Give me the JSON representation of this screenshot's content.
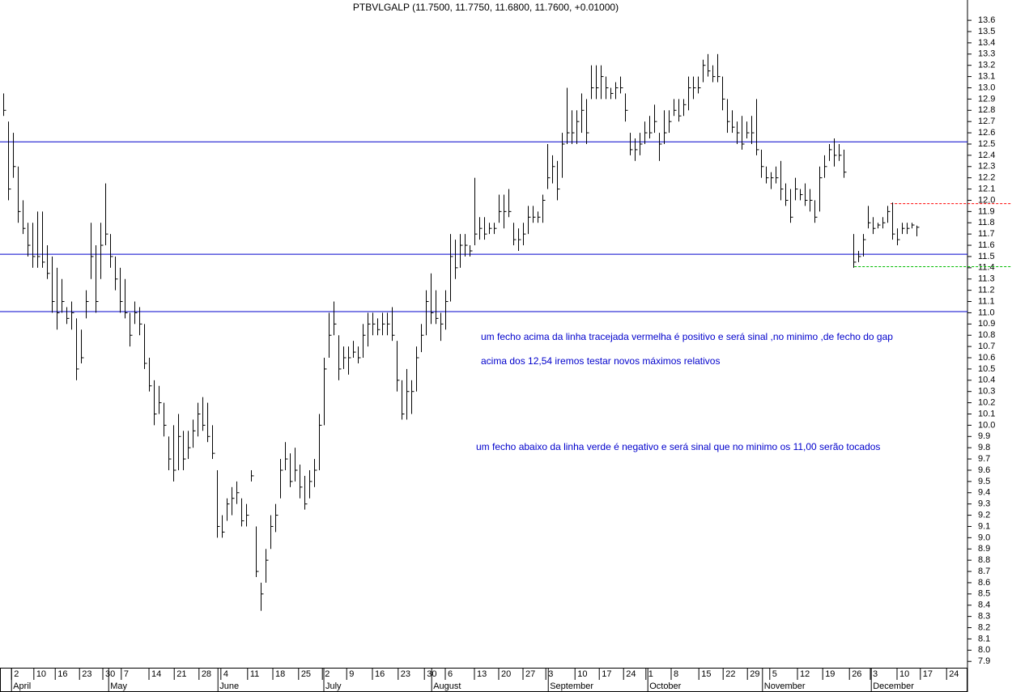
{
  "chart_data": {
    "type": "hlc",
    "title": "PTBVLGALP (11.7500, 11.7750, 11.6800, 11.7600, +0.01000)",
    "high": [
      12.95,
      12.7,
      12.6,
      12.3,
      12.0,
      11.8,
      11.8,
      11.9,
      11.9,
      11.6,
      11.5,
      11.4,
      11.3,
      11.05,
      11.1,
      10.95,
      10.85,
      11.2,
      11.8,
      11.6,
      11.8,
      12.15,
      11.7,
      11.5,
      11.4,
      11.3,
      11.0,
      11.1,
      11.05,
      10.9,
      10.6,
      10.4,
      10.35,
      10.2,
      9.9,
      10.0,
      10.1,
      9.95,
      9.95,
      10.05,
      10.2,
      10.25,
      10.2,
      10.0,
      9.6,
      9.2,
      9.35,
      9.45,
      9.5,
      9.35,
      9.3,
      9.6,
      9.1,
      8.6,
      8.9,
      9.2,
      9.3,
      9.7,
      9.85,
      9.75,
      9.8,
      9.65,
      9.55,
      9.6,
      9.7,
      10.1,
      10.6,
      11.0,
      11.1,
      10.8,
      10.7,
      10.7,
      10.75,
      10.7,
      10.9,
      11.0,
      11.0,
      10.95,
      11.0,
      11.0,
      11.05,
      10.75,
      10.4,
      10.5,
      10.4,
      10.7,
      10.9,
      11.2,
      11.35,
      11.2,
      11.0,
      11.2,
      11.7,
      11.65,
      11.7,
      11.7,
      11.6,
      12.2,
      11.85,
      11.85,
      11.8,
      11.8,
      12.05,
      12.05,
      12.1,
      11.8,
      11.75,
      11.8,
      11.95,
      11.95,
      11.9,
      12.05,
      12.5,
      12.4,
      12.35,
      12.6,
      13.0,
      12.8,
      12.8,
      12.95,
      12.9,
      13.2,
      13.2,
      13.2,
      13.1,
      13.0,
      13.05,
      13.1,
      12.95,
      12.6,
      12.55,
      12.6,
      12.7,
      12.75,
      12.85,
      12.6,
      12.8,
      12.8,
      12.9,
      12.9,
      12.9,
      13.1,
      13.1,
      13.1,
      13.25,
      13.3,
      13.2,
      13.3,
      13.1,
      12.9,
      12.8,
      12.7,
      12.75,
      12.7,
      12.75,
      12.9,
      12.45,
      12.3,
      12.25,
      12.3,
      12.35,
      12.15,
      12.1,
      12.2,
      12.1,
      12.15,
      12.1,
      12.0,
      12.3,
      12.4,
      12.5,
      12.55,
      12.5,
      12.45,
      null,
      11.7,
      11.55,
      11.7,
      11.95,
      11.85,
      11.8,
      11.85,
      11.95,
      11.98,
      11.75,
      11.8,
      11.8,
      11.8,
      11.775
    ],
    "low": [
      12.75,
      12.0,
      12.2,
      11.8,
      11.7,
      11.5,
      11.4,
      11.4,
      11.4,
      11.3,
      11.0,
      10.85,
      11.0,
      10.9,
      10.85,
      10.4,
      10.55,
      10.95,
      11.3,
      11.0,
      11.3,
      11.6,
      11.4,
      11.2,
      11.0,
      10.95,
      10.7,
      10.9,
      10.8,
      10.5,
      10.3,
      10.0,
      10.1,
      9.9,
      9.6,
      9.5,
      9.6,
      9.6,
      9.7,
      9.8,
      9.9,
      9.95,
      9.85,
      9.7,
      9.0,
      9.0,
      9.15,
      9.2,
      9.3,
      9.1,
      9.1,
      9.5,
      8.65,
      8.35,
      8.6,
      8.9,
      9.05,
      9.35,
      9.6,
      9.45,
      9.5,
      9.35,
      9.25,
      9.35,
      9.45,
      9.6,
      10.0,
      10.6,
      10.8,
      10.4,
      10.5,
      10.45,
      10.6,
      10.55,
      10.6,
      10.7,
      10.8,
      10.8,
      10.8,
      10.8,
      10.75,
      10.3,
      10.05,
      10.05,
      10.1,
      10.3,
      10.65,
      10.8,
      10.9,
      10.9,
      10.75,
      10.85,
      11.1,
      11.3,
      11.4,
      11.5,
      11.5,
      11.6,
      11.65,
      11.65,
      11.7,
      11.7,
      11.8,
      11.75,
      11.85,
      11.6,
      11.55,
      11.6,
      11.7,
      11.8,
      11.8,
      11.8,
      12.1,
      12.15,
      12.0,
      12.2,
      12.5,
      12.5,
      12.5,
      12.6,
      12.5,
      12.9,
      12.9,
      12.9,
      12.9,
      12.9,
      12.9,
      12.95,
      12.7,
      12.4,
      12.35,
      12.4,
      12.5,
      12.55,
      12.6,
      12.35,
      12.5,
      12.6,
      12.75,
      12.7,
      12.75,
      12.8,
      12.9,
      12.95,
      13.05,
      13.1,
      13.05,
      13.05,
      12.8,
      12.6,
      12.6,
      12.5,
      12.45,
      12.55,
      12.5,
      12.4,
      12.2,
      12.15,
      12.1,
      12.15,
      12.0,
      11.95,
      11.8,
      12.0,
      12.0,
      11.95,
      11.9,
      11.8,
      11.9,
      12.2,
      12.35,
      12.3,
      12.35,
      12.2,
      null,
      11.4,
      11.45,
      11.5,
      11.75,
      11.7,
      11.75,
      11.75,
      11.8,
      11.65,
      11.6,
      11.7,
      11.7,
      11.75,
      11.68
    ],
    "close": [
      12.8,
      12.1,
      12.3,
      11.9,
      11.75,
      11.6,
      11.5,
      11.5,
      11.45,
      11.35,
      11.1,
      11.0,
      11.1,
      10.95,
      11.0,
      10.5,
      10.6,
      11.1,
      11.5,
      11.1,
      11.6,
      11.7,
      11.5,
      11.3,
      11.1,
      11.0,
      10.8,
      11.0,
      10.9,
      10.55,
      10.35,
      10.1,
      10.2,
      10.0,
      9.7,
      9.6,
      9.9,
      9.7,
      9.8,
      9.95,
      10.1,
      10.0,
      9.9,
      9.75,
      9.1,
      9.05,
      9.3,
      9.35,
      9.4,
      9.15,
      9.2,
      9.55,
      8.7,
      8.5,
      8.8,
      9.1,
      9.2,
      9.6,
      9.7,
      9.5,
      9.6,
      9.45,
      9.3,
      9.5,
      9.6,
      10.0,
      10.5,
      10.8,
      10.9,
      10.5,
      10.6,
      10.6,
      10.65,
      10.6,
      10.8,
      10.9,
      10.9,
      10.85,
      10.9,
      10.9,
      10.8,
      10.4,
      10.1,
      10.3,
      10.3,
      10.6,
      10.8,
      11.1,
      11.0,
      10.95,
      10.9,
      11.1,
      11.5,
      11.4,
      11.6,
      11.6,
      11.55,
      11.7,
      11.75,
      11.7,
      11.75,
      11.75,
      11.9,
      11.9,
      11.9,
      11.65,
      11.65,
      11.7,
      11.85,
      11.85,
      11.85,
      12.0,
      12.2,
      12.3,
      12.1,
      12.5,
      12.6,
      12.6,
      12.7,
      12.8,
      12.6,
      13.0,
      13.0,
      13.1,
      13.0,
      12.95,
      13.0,
      13.0,
      12.8,
      12.45,
      12.45,
      12.5,
      12.6,
      12.6,
      12.7,
      12.5,
      12.6,
      12.7,
      12.8,
      12.75,
      12.85,
      13.0,
      13.0,
      13.0,
      13.2,
      13.15,
      13.1,
      13.1,
      12.9,
      12.7,
      12.65,
      12.6,
      12.5,
      12.6,
      12.6,
      12.45,
      12.3,
      12.2,
      12.2,
      12.2,
      12.1,
      12.0,
      11.85,
      12.1,
      12.05,
      12.0,
      12.0,
      11.85,
      12.2,
      12.3,
      12.45,
      12.4,
      12.4,
      12.25,
      null,
      11.45,
      11.5,
      11.65,
      11.8,
      11.75,
      11.78,
      11.8,
      11.9,
      11.7,
      11.65,
      11.75,
      11.75,
      11.78,
      11.76
    ],
    "xlim": [
      -0.67,
      198.5
    ],
    "ylim": [
      7.88,
      13.68
    ],
    "yticks": [
      7.9,
      {
        "value": 8,
        "label": "8.0"
      },
      8.1,
      8.2,
      8.3,
      8.4,
      8.5,
      8.6,
      8.7,
      8.8,
      8.9,
      {
        "value": 9,
        "label": "9.0"
      },
      9.1,
      9.2,
      9.3,
      9.4,
      9.5,
      9.6,
      9.7,
      9.8,
      9.9,
      {
        "value": 10,
        "label": "10.0"
      },
      10.1,
      10.2,
      10.3,
      10.4,
      10.5,
      10.6,
      10.7,
      10.8,
      10.9,
      {
        "value": 11,
        "label": "11.0"
      },
      11.1,
      11.2,
      11.3,
      11.4,
      11.5,
      11.6,
      11.7,
      11.8,
      11.9,
      {
        "value": 12,
        "label": "12.0"
      },
      12.1,
      12.2,
      12.3,
      12.4,
      12.5,
      12.6,
      12.7,
      12.8,
      12.9,
      {
        "value": 13,
        "label": "13.0"
      },
      13.1,
      13.2,
      13.3,
      13.4,
      13.5,
      13.6
    ],
    "xticks": [
      {
        "value": 2.7,
        "label": "2"
      },
      {
        "value": 7.3,
        "label": "10"
      },
      {
        "value": 11.7,
        "label": "16"
      },
      {
        "value": 16.7,
        "label": "23"
      },
      {
        "value": 21.5,
        "label": "30"
      },
      {
        "value": 25.3,
        "label": "7"
      },
      {
        "value": 31,
        "label": "14"
      },
      {
        "value": 36.2,
        "label": "21"
      },
      {
        "value": 41.3,
        "label": "28"
      },
      {
        "value": 45.8,
        "label": "4"
      },
      {
        "value": 51.3,
        "label": "11"
      },
      {
        "value": 56.5,
        "label": "18"
      },
      {
        "value": 61.8,
        "label": "25"
      },
      {
        "value": 66.7,
        "label": "2"
      },
      {
        "value": 71.7,
        "label": "9"
      },
      {
        "value": 77,
        "label": "16"
      },
      {
        "value": 82.3,
        "label": "23"
      },
      {
        "value": 87.7,
        "label": "30"
      },
      {
        "value": 92,
        "label": "6"
      },
      {
        "value": 98,
        "label": "13"
      },
      {
        "value": 103,
        "label": "20"
      },
      {
        "value": 108,
        "label": "27"
      },
      {
        "value": 112.7,
        "label": "3"
      },
      {
        "value": 118.7,
        "label": "10"
      },
      {
        "value": 123.7,
        "label": "17"
      },
      {
        "value": 128.7,
        "label": "24"
      },
      {
        "value": 133.3,
        "label": "1"
      },
      {
        "value": 138.5,
        "label": "8"
      },
      {
        "value": 144.2,
        "label": "15"
      },
      {
        "value": 149.2,
        "label": "22"
      },
      {
        "value": 154.2,
        "label": "29"
      },
      {
        "value": 158.8,
        "label": "5"
      },
      {
        "value": 164.5,
        "label": "12"
      },
      {
        "value": 169.7,
        "label": "19"
      },
      {
        "value": 175.2,
        "label": "26"
      },
      {
        "value": 179.5,
        "label": "3"
      },
      {
        "value": 185,
        "label": "10"
      },
      {
        "value": 189.8,
        "label": "17"
      },
      {
        "value": 195.2,
        "label": "24"
      }
    ],
    "months": [
      {
        "value": 1.7,
        "label": "April"
      },
      {
        "value": 21.7,
        "label": "May"
      },
      {
        "value": 44.2,
        "label": "June"
      },
      {
        "value": 66,
        "label": "July"
      },
      {
        "value": 88.2,
        "label": "August"
      },
      {
        "value": 112.2,
        "label": "September"
      },
      {
        "value": 132.7,
        "label": "October"
      },
      {
        "value": 156.3,
        "label": "November"
      },
      {
        "value": 178.7,
        "label": "December"
      }
    ],
    "hlines": [
      {
        "value": 12.52,
        "color": "#0000cc"
      },
      {
        "value": 11.52,
        "color": "#0000cc"
      },
      {
        "value": 11.01,
        "color": "#0000cc"
      },
      {
        "value": 11.97,
        "color": "#ff0000",
        "dash": true,
        "from": 182.7
      },
      {
        "value": 11.41,
        "color": "#00bb00",
        "dash": true,
        "from": 175.2
      }
    ],
    "annotations": [
      "um fecho acima da linha tracejada vermelha é positivo e será sinal ,no minimo ,de fecho do gap",
      "acima dos 12,54 iremos testar novos máximos relativos",
      "um fecho abaixo da linha verde é negativo e será sinal que no minimo os 11,00 serão tocados"
    ],
    "bar_color": "#000000"
  }
}
